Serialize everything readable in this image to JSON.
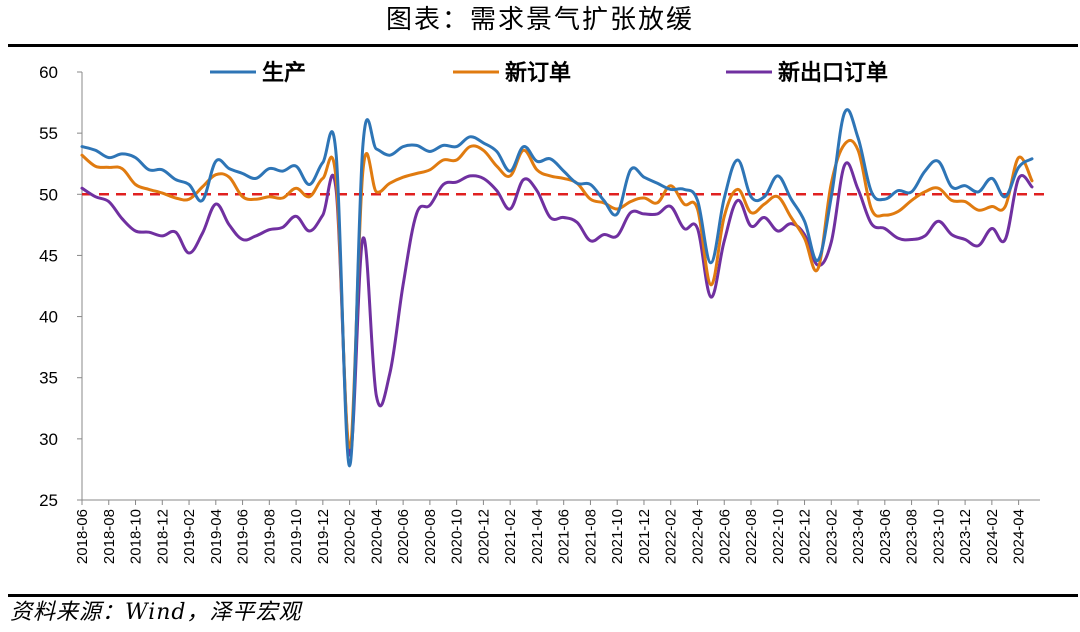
{
  "title": "图表：需求景气扩张放缓",
  "source": "资料来源：Wind，泽平宏观",
  "chart_data": {
    "type": "line",
    "ylim": [
      25,
      60
    ],
    "yticks": [
      25,
      30,
      35,
      40,
      45,
      50,
      55,
      60
    ],
    "x_tick_labels": [
      "2018-06",
      "2018-08",
      "2018-10",
      "2018-12",
      "2019-02",
      "2019-04",
      "2019-06",
      "2019-08",
      "2019-10",
      "2019-12",
      "2020-02",
      "2020-04",
      "2020-06",
      "2020-08",
      "2020-10",
      "2020-12",
      "2021-02",
      "2021-04",
      "2021-06",
      "2021-08",
      "2021-10",
      "2021-12",
      "2022-02",
      "2022-04",
      "2022-06",
      "2022-08",
      "2022-10",
      "2022-12",
      "2023-02",
      "2023-04",
      "2023-06",
      "2023-08",
      "2023-10",
      "2023-12",
      "2024-02",
      "2024-04"
    ],
    "reference_line": {
      "value": 50,
      "color": "#e02020",
      "style": "dashed"
    },
    "series": [
      {
        "name": "生产",
        "color": "#2e75b6",
        "values": [
          53.9,
          53.6,
          53.0,
          53.3,
          53.0,
          52.0,
          52.0,
          51.2,
          50.8,
          49.5,
          52.7,
          52.1,
          51.7,
          51.3,
          52.1,
          51.9,
          52.3,
          50.8,
          52.6,
          53.2,
          27.8,
          54.1,
          53.7,
          53.2,
          53.9,
          54.0,
          53.5,
          54.0,
          53.9,
          54.7,
          54.2,
          53.5,
          51.9,
          53.9,
          52.7,
          52.9,
          51.9,
          50.9,
          50.8,
          49.5,
          48.4,
          52.0,
          51.4,
          50.9,
          50.4,
          50.4,
          49.5,
          44.4,
          49.7,
          52.8,
          49.8,
          49.8,
          51.5,
          49.6,
          47.8,
          44.6,
          49.8,
          56.7,
          54.6,
          50.2,
          49.6,
          50.3,
          50.2,
          51.9,
          52.7,
          50.6,
          50.7,
          50.2,
          51.3,
          49.8,
          52.2,
          52.9
        ]
      },
      {
        "name": "新订单",
        "color": "#e07b10",
        "values": [
          53.2,
          52.3,
          52.2,
          52.1,
          50.8,
          50.4,
          50.1,
          49.7,
          49.6,
          50.6,
          51.6,
          51.4,
          49.8,
          49.6,
          49.8,
          49.7,
          50.5,
          49.8,
          51.3,
          51.2,
          29.3,
          52.0,
          50.2,
          50.9,
          51.4,
          51.7,
          52.0,
          52.8,
          52.8,
          53.9,
          53.6,
          52.3,
          51.5,
          53.6,
          52.0,
          51.5,
          51.3,
          50.9,
          49.6,
          49.3,
          48.8,
          49.4,
          49.7,
          49.3,
          50.7,
          49.2,
          48.8,
          42.6,
          48.2,
          50.4,
          48.5,
          49.2,
          49.8,
          48.1,
          46.4,
          43.9,
          50.9,
          54.1,
          53.6,
          48.8,
          48.3,
          48.6,
          49.5,
          50.2,
          50.5,
          49.5,
          49.4,
          48.7,
          49.0,
          49.0,
          53.0,
          51.1
        ]
      },
      {
        "name": "新出口订单",
        "color": "#7030a0",
        "values": [
          50.5,
          49.8,
          49.4,
          48.0,
          47.0,
          46.9,
          46.6,
          46.9,
          45.2,
          46.8,
          49.2,
          47.5,
          46.3,
          46.6,
          47.1,
          47.3,
          48.2,
          47.0,
          48.3,
          50.3,
          28.7,
          46.4,
          33.5,
          35.3,
          42.6,
          48.4,
          49.1,
          50.8,
          51.0,
          51.5,
          51.3,
          50.3,
          48.8,
          51.2,
          50.3,
          48.1,
          48.1,
          47.7,
          46.2,
          46.7,
          46.6,
          48.5,
          48.4,
          48.4,
          49.0,
          47.2,
          47.2,
          41.6,
          46.2,
          49.5,
          47.4,
          48.1,
          47.0,
          47.6,
          46.7,
          44.2,
          46.1,
          52.4,
          50.4,
          47.6,
          47.2,
          46.4,
          46.3,
          46.6,
          47.8,
          46.7,
          46.3,
          45.8,
          47.2,
          46.3,
          51.3,
          50.6
        ]
      }
    ]
  }
}
